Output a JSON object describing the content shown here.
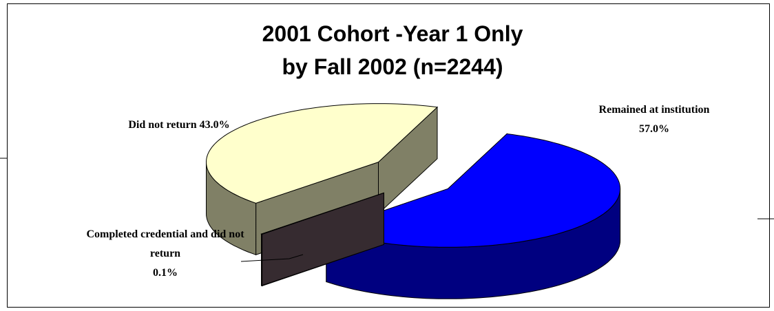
{
  "chart_data": {
    "type": "pie3d",
    "title": "2001 Cohort -Year 1 Only",
    "subtitle": "by Fall 2002 (n=2244)",
    "categories": [
      "Remained at institution",
      "Completed credential and did not return",
      "Did not return"
    ],
    "values": [
      57.0,
      0.1,
      43.0
    ],
    "value_labels": [
      "57.0%",
      "0.1%",
      "43.0%"
    ],
    "colors": [
      "#0000ff",
      "#6b5660",
      "#ffffcc"
    ]
  }
}
